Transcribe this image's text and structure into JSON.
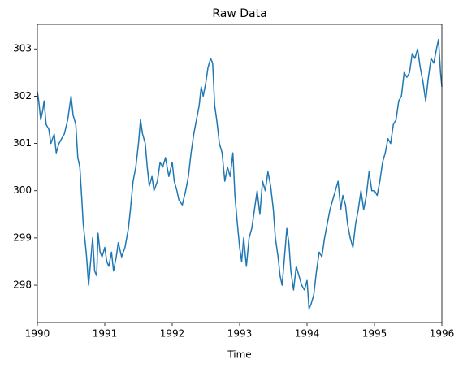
{
  "chart_data": {
    "type": "line",
    "title": "Raw Data",
    "x_label": "Time",
    "x": [
      1990.0,
      1990.02,
      1990.05,
      1990.08,
      1990.1,
      1990.13,
      1990.17,
      1990.2,
      1990.25,
      1990.28,
      1990.32,
      1990.36,
      1990.4,
      1990.45,
      1990.5,
      1990.53,
      1990.57,
      1990.6,
      1990.63,
      1990.66,
      1990.68,
      1990.71,
      1990.73,
      1990.76,
      1990.79,
      1990.82,
      1990.85,
      1990.88,
      1990.9,
      1990.93,
      1990.96,
      1991.0,
      1991.03,
      1991.06,
      1991.1,
      1991.13,
      1991.17,
      1991.2,
      1991.25,
      1991.3,
      1991.35,
      1991.38,
      1991.42,
      1991.46,
      1991.5,
      1991.53,
      1991.56,
      1991.6,
      1991.63,
      1991.66,
      1991.7,
      1991.73,
      1991.78,
      1991.82,
      1991.86,
      1991.9,
      1991.95,
      1992.0,
      1992.03,
      1992.07,
      1992.1,
      1992.15,
      1992.2,
      1992.24,
      1992.28,
      1992.32,
      1992.36,
      1992.4,
      1992.43,
      1992.46,
      1992.5,
      1992.53,
      1992.57,
      1992.6,
      1992.63,
      1992.66,
      1992.7,
      1992.74,
      1992.78,
      1992.82,
      1992.86,
      1992.9,
      1992.93,
      1992.96,
      1993.0,
      1993.03,
      1993.06,
      1993.1,
      1993.14,
      1993.18,
      1993.22,
      1993.26,
      1993.3,
      1993.34,
      1993.38,
      1993.42,
      1993.46,
      1993.5,
      1993.53,
      1993.57,
      1993.6,
      1993.63,
      1993.66,
      1993.7,
      1993.73,
      1993.76,
      1993.8,
      1993.84,
      1993.88,
      1993.92,
      1993.96,
      1994.0,
      1994.03,
      1994.06,
      1994.1,
      1994.14,
      1994.18,
      1994.22,
      1994.26,
      1994.3,
      1994.34,
      1994.38,
      1994.42,
      1994.46,
      1994.5,
      1994.53,
      1994.57,
      1994.6,
      1994.64,
      1994.68,
      1994.72,
      1994.76,
      1994.8,
      1994.84,
      1994.88,
      1994.92,
      1994.96,
      1995.0,
      1995.04,
      1995.08,
      1995.12,
      1995.16,
      1995.2,
      1995.24,
      1995.28,
      1995.32,
      1995.36,
      1995.4,
      1995.44,
      1995.48,
      1995.52,
      1995.56,
      1995.6,
      1995.64,
      1995.68,
      1995.72,
      1995.76,
      1995.8,
      1995.84,
      1995.88,
      1995.92,
      1995.95,
      1995.98,
      1996.0
    ],
    "series": [
      {
        "name": "Raw Data",
        "color": "#1f77b4",
        "values": [
          302.1,
          301.9,
          301.5,
          301.7,
          301.9,
          301.4,
          301.3,
          301.0,
          301.2,
          300.8,
          301.0,
          301.1,
          301.2,
          301.5,
          302.0,
          301.6,
          301.4,
          300.7,
          300.5,
          299.8,
          299.3,
          298.9,
          298.6,
          298.0,
          298.5,
          299.0,
          298.3,
          298.2,
          299.1,
          298.7,
          298.6,
          298.8,
          298.5,
          298.4,
          298.7,
          298.3,
          298.6,
          298.9,
          298.6,
          298.8,
          299.2,
          299.6,
          300.2,
          300.5,
          301.0,
          301.5,
          301.2,
          301.0,
          300.5,
          300.1,
          300.3,
          300.0,
          300.2,
          300.6,
          300.5,
          300.7,
          300.3,
          300.6,
          300.2,
          300.0,
          299.8,
          299.7,
          300.0,
          300.3,
          300.8,
          301.2,
          301.5,
          301.8,
          302.2,
          302.0,
          302.3,
          302.6,
          302.8,
          302.7,
          301.8,
          301.5,
          301.0,
          300.8,
          300.2,
          300.5,
          300.3,
          300.8,
          299.9,
          299.4,
          298.8,
          298.5,
          299.0,
          298.4,
          299.0,
          299.2,
          299.6,
          300.0,
          299.5,
          300.2,
          300.0,
          300.4,
          300.1,
          299.6,
          299.0,
          298.6,
          298.2,
          298.0,
          298.5,
          299.2,
          298.9,
          298.3,
          297.9,
          298.4,
          298.2,
          298.0,
          297.9,
          298.1,
          297.5,
          297.6,
          297.8,
          298.3,
          298.7,
          298.6,
          299.0,
          299.3,
          299.6,
          299.8,
          300.0,
          300.2,
          299.6,
          299.9,
          299.7,
          299.3,
          299.0,
          298.8,
          299.3,
          299.6,
          300.0,
          299.6,
          299.9,
          300.4,
          300.0,
          300.0,
          299.9,
          300.2,
          300.6,
          300.8,
          301.1,
          301.0,
          301.4,
          301.5,
          301.9,
          302.0,
          302.5,
          302.4,
          302.5,
          302.9,
          302.8,
          303.0,
          302.6,
          302.3,
          301.9,
          302.4,
          302.8,
          302.7,
          303.0,
          303.2,
          302.5,
          302.2
        ]
      }
    ],
    "xlim": [
      1990,
      1996
    ],
    "xticks": [
      1990,
      1991,
      1992,
      1993,
      1994,
      1995,
      1996
    ],
    "ylim": [
      297.21,
      303.52
    ],
    "yticks": [
      298,
      299,
      300,
      301,
      302,
      303
    ],
    "grid": false
  }
}
